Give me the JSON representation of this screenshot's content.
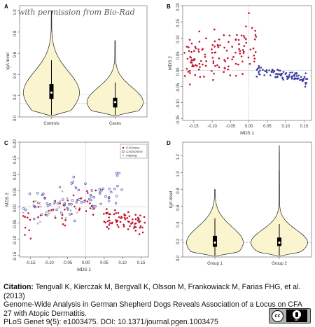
{
  "watermark": "with permission from Bio-Rad",
  "colors": {
    "violin_fill": "#fbf5cf",
    "violin_stroke": "#222222",
    "dashed_ref": "#b5b5b5",
    "red_points": "#c0152b",
    "blue_points": "#3c3fa2"
  },
  "chart_data": [
    {
      "panel": "A",
      "type": "violin",
      "ylabel": "IgA level",
      "yticks": [
        0.0,
        0.2,
        0.4,
        0.6,
        0.8,
        1.0
      ],
      "ylim": [
        0.0,
        1.05
      ],
      "categories": [
        "Controls",
        "Cases"
      ],
      "reference_lines": [
        0.21,
        0.13
      ],
      "stats": [
        {
          "name": "Controls",
          "min": 0.01,
          "q1": 0.17,
          "median": 0.23,
          "q3": 0.31,
          "max": 1.0
        },
        {
          "name": "Cases",
          "min": 0.01,
          "q1": 0.09,
          "median": 0.14,
          "q3": 0.18,
          "max": 0.72
        }
      ]
    },
    {
      "panel": "B",
      "type": "scatter",
      "xlabel": "MDS 1",
      "ylabel": "MDS 2",
      "xlim": [
        -0.18,
        0.17
      ],
      "ylim": [
        -0.155,
        0.2
      ],
      "xticks": [
        -0.15,
        -0.1,
        -0.05,
        0.0,
        0.05,
        0.1,
        0.15
      ],
      "yticks": [
        -0.15,
        -0.1,
        -0.05,
        0.0,
        0.05,
        0.1,
        0.15,
        0.2
      ],
      "groups": [
        {
          "color": "red",
          "marker": "dot",
          "cluster": {
            "x_range": [
              -0.175,
              0.02
            ],
            "y_range": [
              -0.14,
              0.19
            ],
            "n": 130
          }
        },
        {
          "color": "blue",
          "marker": "dot",
          "cluster": {
            "x_range": [
              0.02,
              0.16
            ],
            "y_range": [
              -0.05,
              0.05
            ],
            "n": 90
          }
        }
      ]
    },
    {
      "panel": "C",
      "type": "scatter",
      "xlabel": "MDS 1",
      "ylabel": "MDS 2",
      "xlim": [
        -0.18,
        0.17
      ],
      "ylim": [
        -0.155,
        0.2
      ],
      "xticks": [
        -0.15,
        -0.1,
        -0.05,
        0.0,
        0.05,
        0.1,
        0.15
      ],
      "yticks": [
        -0.15,
        -0.1,
        -0.05,
        0.0,
        0.05,
        0.1,
        0.15,
        0.2
      ],
      "legend": {
        "position": "top-right",
        "entries": [
          "CADcase",
          "CADcontrol",
          "missing"
        ]
      },
      "groups": [
        {
          "name": "CADcase",
          "color": "red",
          "marker": "dot",
          "cluster": {
            "x_range": [
              -0.17,
              0.16
            ],
            "y_range": [
              -0.14,
              0.15
            ],
            "n": 120
          }
        },
        {
          "name": "CADcontrol",
          "color": "blue",
          "marker": "open-circle",
          "cluster": {
            "x_range": [
              -0.17,
              0.1
            ],
            "y_range": [
              -0.13,
              0.1
            ],
            "n": 70
          }
        },
        {
          "name": "missing",
          "color": "grey",
          "marker": "cross",
          "cluster": {
            "x_range": [
              -0.17,
              -0.02
            ],
            "y_range": [
              -0.12,
              0.1
            ],
            "n": 25
          }
        }
      ]
    },
    {
      "panel": "D",
      "type": "violin",
      "ylabel": "IgA level",
      "yticks": [
        0.0,
        0.2,
        0.4,
        0.6,
        0.8,
        1.0,
        1.2
      ],
      "ylim": [
        0.0,
        1.36
      ],
      "categories": [
        "Group 1",
        "Group 2"
      ],
      "reference_lines": [
        0.17
      ],
      "stats": [
        {
          "name": "Group 1",
          "min": 0.01,
          "q1": 0.12,
          "median": 0.17,
          "q3": 0.25,
          "max": 0.8
        },
        {
          "name": "Group 2",
          "min": 0.01,
          "q1": 0.13,
          "median": 0.17,
          "q3": 0.23,
          "max": 1.32
        }
      ]
    }
  ],
  "citation": {
    "label": "Citation:",
    "authors": "Tengvall K, Kierczak M, Bergvall K, Olsson M, Frankowiack M, Farias FHG, et al. (2013)",
    "title": "Genome-Wide Analysis in German Shepherd Dogs Reveals Association of a Locus on CFA 27 with Atopic Dermatitis.",
    "journal": "PLoS Genet 9(5): e1003475. DOI: 10.1371/journal.pgen.1003475"
  },
  "license_badge": {
    "left": "cc",
    "right": "BY"
  }
}
